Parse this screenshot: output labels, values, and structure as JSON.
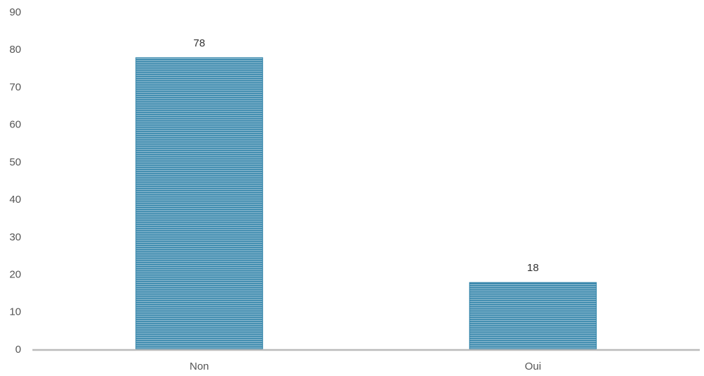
{
  "chart_data": {
    "type": "bar",
    "categories": [
      "Non",
      "Oui"
    ],
    "values": [
      78,
      18
    ],
    "color": "#2f82a8",
    "ylim": [
      0,
      90
    ],
    "yticks": [
      0,
      10,
      20,
      30,
      40,
      50,
      60,
      70,
      80,
      90
    ],
    "grid": false
  }
}
